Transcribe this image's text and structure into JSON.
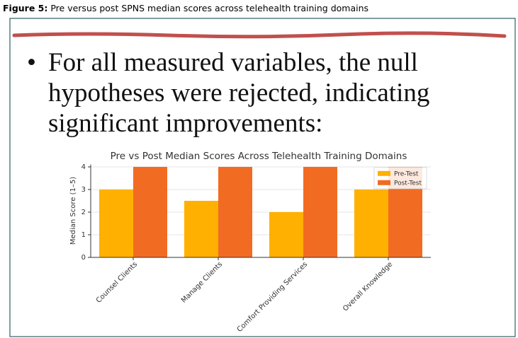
{
  "caption": {
    "label": "Figure 5:",
    "text": "Pre versus post SPNS median scores across telehealth training domains"
  },
  "bullet": [
    "For all measured variables, the null",
    "hypotheses were rejected, indicating",
    "significant improvements:"
  ],
  "chart_data": {
    "type": "bar",
    "title": "Pre vs Post Median Scores Across Telehealth Training Domains",
    "y_label": "Median Score (1–5)",
    "categories": [
      "Counsel Clients",
      "Manage Clients",
      "Comfort Providing Services",
      "Overall Knowledge"
    ],
    "series": [
      {
        "name": "Pre-Test",
        "color": "#ffb000",
        "values": [
          3,
          2.5,
          2,
          3
        ]
      },
      {
        "name": "Post-Test",
        "color": "#f26b22",
        "values": [
          4,
          4,
          4,
          4
        ]
      }
    ],
    "ylim": [
      0,
      4.1
    ],
    "yticks": [
      0,
      1,
      2,
      3,
      4
    ],
    "grid": true,
    "legend": "upper right"
  }
}
